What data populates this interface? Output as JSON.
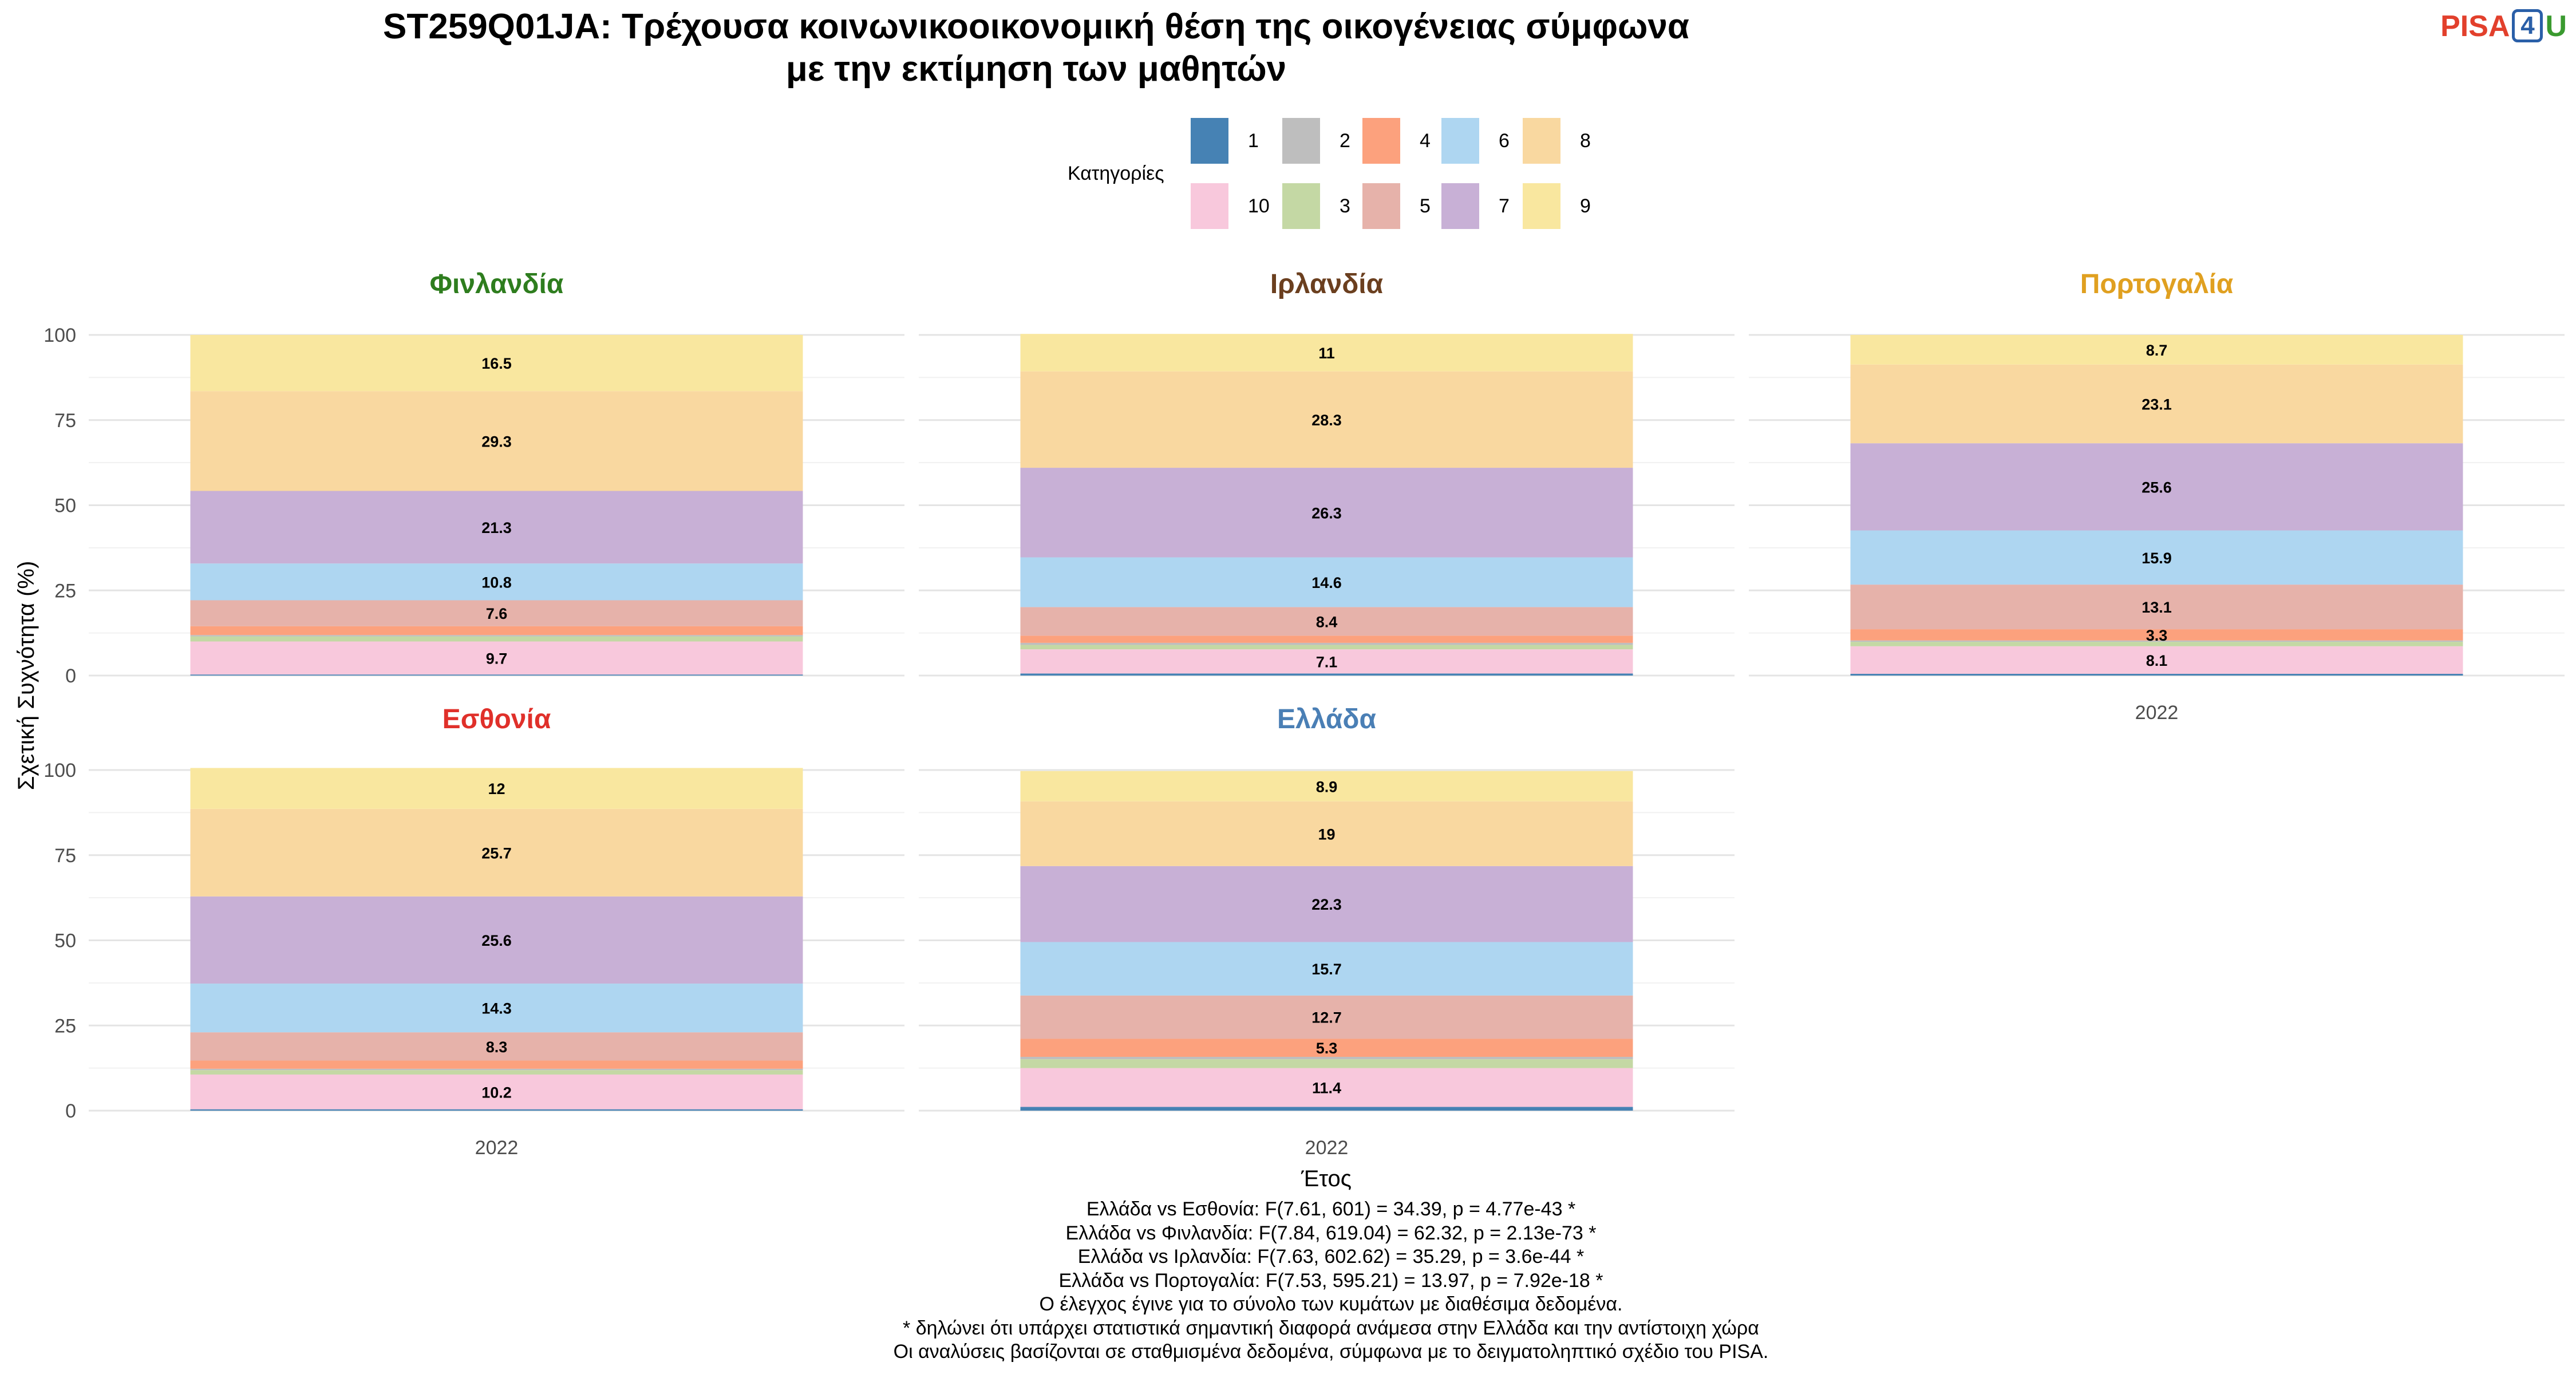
{
  "title_line1": "ST259Q01JA: Τρέχουσα κοινωνικοοικονομική θέση της οικογένειας σύμφωνα",
  "title_line2": "με την εκτίμηση των μαθητών",
  "logo": {
    "part1": "PISA",
    "part2": "4",
    "part3": "U"
  },
  "legend": {
    "title": "Κατηγορίες",
    "items": [
      {
        "label": "1",
        "color": "#4682b4"
      },
      {
        "label": "2",
        "color": "#bebebe"
      },
      {
        "label": "4",
        "color": "#fca17d"
      },
      {
        "label": "6",
        "color": "#aed6f1"
      },
      {
        "label": "8",
        "color": "#f9d8a0"
      },
      {
        "label": "10",
        "color": "#f8c8dc"
      },
      {
        "label": "3",
        "color": "#c4d8a4"
      },
      {
        "label": "5",
        "color": "#e6b2aa"
      },
      {
        "label": "7",
        "color": "#c8b0d6"
      },
      {
        "label": "9",
        "color": "#f9e79f"
      }
    ]
  },
  "axis": {
    "ylabel": "Σχετική Συχνότητα (%)",
    "xlabel": "Έτος",
    "yticks": [
      "0",
      "25",
      "50",
      "75",
      "100"
    ]
  },
  "chart_data": {
    "type": "bar",
    "stacked": true,
    "categories": [
      "2022"
    ],
    "ylim": [
      0,
      100
    ],
    "stack_order_bottom_to_top": [
      "1",
      "10",
      "3",
      "2",
      "4",
      "5",
      "6",
      "7",
      "8",
      "9"
    ],
    "panels": [
      {
        "country": "Φινλανδία",
        "title_color": "#2e7d1e",
        "year": "2022",
        "show_xtick": false,
        "segments": {
          "1": 0.3,
          "10": 9.7,
          "3": 1.5,
          "2": 0.4,
          "4": 2.6,
          "5": 7.6,
          "6": 10.8,
          "7": 21.3,
          "8": 29.3,
          "9": 16.5
        },
        "labels": {
          "10": "9.7",
          "5": "7.6",
          "6": "10.8",
          "7": "21.3",
          "8": "29.3",
          "9": "16.5"
        }
      },
      {
        "country": "Ιρλανδία",
        "title_color": "#6b3f1f",
        "year": "2022",
        "show_xtick": false,
        "segments": {
          "1": 0.6,
          "10": 7.1,
          "3": 1.3,
          "2": 0.6,
          "4": 2.1,
          "5": 8.4,
          "6": 14.6,
          "7": 26.3,
          "8": 28.3,
          "9": 11.0
        },
        "labels": {
          "10": "7.1",
          "5": "8.4",
          "6": "14.6",
          "7": "26.3",
          "8": "28.3",
          "9": "11"
        }
      },
      {
        "country": "Πορτογαλία",
        "title_color": "#e0a020",
        "year": "2022",
        "show_xtick": true,
        "segments": {
          "1": 0.5,
          "10": 8.1,
          "3": 1.3,
          "2": 0.4,
          "4": 3.3,
          "5": 13.1,
          "6": 15.9,
          "7": 25.6,
          "8": 23.1,
          "9": 8.7
        },
        "labels": {
          "10": "8.1",
          "4": "3.3",
          "5": "13.1",
          "6": "15.9",
          "7": "25.6",
          "8": "23.1",
          "9": "8.7"
        }
      },
      {
        "country": "Εσθονία",
        "title_color": "#e0302a",
        "year": "2022",
        "show_xtick": true,
        "segments": {
          "1": 0.4,
          "10": 10.2,
          "3": 1.3,
          "2": 0.4,
          "4": 2.4,
          "5": 8.3,
          "6": 14.3,
          "7": 25.6,
          "8": 25.7,
          "9": 12.0
        },
        "labels": {
          "10": "10.2",
          "5": "8.3",
          "6": "14.3",
          "7": "25.6",
          "8": "25.7",
          "9": "12"
        }
      },
      {
        "country": "Ελλάδα",
        "title_color": "#4a7fb5",
        "year": "2022",
        "show_xtick": true,
        "segments": {
          "1": 1.1,
          "10": 11.4,
          "3": 2.6,
          "2": 0.7,
          "4": 5.3,
          "5": 12.7,
          "6": 15.7,
          "7": 22.3,
          "8": 19.0,
          "9": 8.9
        },
        "labels": {
          "10": "11.4",
          "4": "5.3",
          "5": "12.7",
          "6": "15.7",
          "7": "22.3",
          "8": "19",
          "9": "8.9"
        }
      }
    ]
  },
  "footer": [
    "Ελλάδα vs Εσθονία: F(7.61, 601) = 34.39, p = 4.77e-43 *",
    "Ελλάδα vs Φινλανδία: F(7.84, 619.04) = 62.32, p = 2.13e-73 *",
    "Ελλάδα vs Ιρλανδία: F(7.63, 602.62) = 35.29, p = 3.6e-44 *",
    "Ελλάδα vs Πορτογαλία: F(7.53, 595.21) = 13.97, p = 7.92e-18 *",
    "Ο έλεγχος έγινε για το σύνολο των κυμάτων με διαθέσιμα δεδομένα.",
    "* δηλώνει ότι υπάρχει στατιστικά σημαντική διαφορά ανάμεσα στην Ελλάδα και την αντίστοιχη χώρα",
    "Οι αναλύσεις βασίζονται σε σταθμισμένα δεδομένα, σύμφωνα με το δειγματοληπτικό σχέδιο του PISA."
  ]
}
